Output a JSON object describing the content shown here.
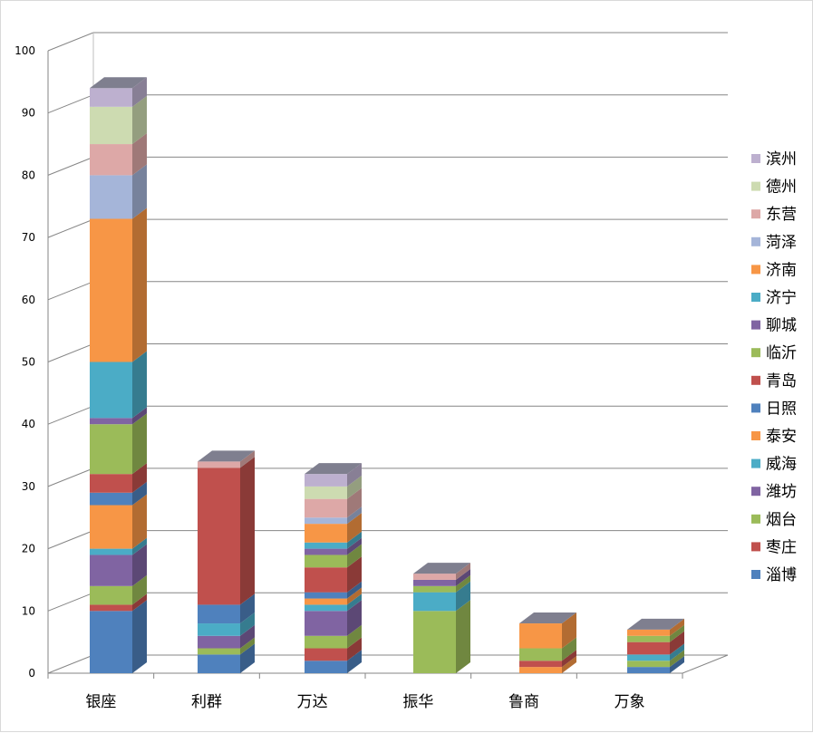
{
  "chart_data": {
    "type": "bar",
    "stacked": true,
    "three_d": true,
    "categories": [
      "银座",
      "利群",
      "万达",
      "振华",
      "鲁商",
      "万象"
    ],
    "ylim": [
      0,
      100
    ],
    "yticks": [
      0,
      10,
      20,
      30,
      40,
      50,
      60,
      70,
      80,
      90,
      100
    ],
    "grid": true,
    "legend_position": "right",
    "series": [
      {
        "name": "淄博",
        "color": "#4F81BD",
        "values": [
          10,
          3,
          2,
          0,
          0,
          1
        ]
      },
      {
        "name": "枣庄",
        "color": "#C0504D",
        "values": [
          1,
          0,
          2,
          0,
          0,
          0
        ]
      },
      {
        "name": "烟台",
        "color": "#9BBB59",
        "values": [
          3,
          1,
          2,
          10,
          0,
          1
        ]
      },
      {
        "name": "潍坊",
        "color": "#8064A2",
        "values": [
          5,
          2,
          4,
          0,
          0,
          0
        ]
      },
      {
        "name": "威海",
        "color": "#4BACC6",
        "values": [
          1,
          2,
          1,
          3,
          0,
          1
        ]
      },
      {
        "name": "泰安",
        "color": "#F79646",
        "values": [
          7,
          0,
          1,
          0,
          1,
          0
        ]
      },
      {
        "name": "日照",
        "color": "#4F81BD",
        "values": [
          2,
          3,
          1,
          0,
          0,
          0
        ]
      },
      {
        "name": "青岛",
        "color": "#C0504D",
        "values": [
          3,
          22,
          4,
          0,
          1,
          2
        ]
      },
      {
        "name": "临沂",
        "color": "#9BBB59",
        "values": [
          8,
          0,
          2,
          1,
          2,
          1
        ]
      },
      {
        "name": "聊城",
        "color": "#8064A2",
        "values": [
          1,
          0,
          1,
          1,
          0,
          0
        ]
      },
      {
        "name": "济宁",
        "color": "#4BACC6",
        "values": [
          9,
          0,
          1,
          0,
          0,
          0
        ]
      },
      {
        "name": "济南",
        "color": "#F79646",
        "values": [
          23,
          0,
          3,
          0,
          4,
          1
        ]
      },
      {
        "name": "菏泽",
        "color": "#A5B5D9",
        "values": [
          7,
          0,
          1,
          0,
          0,
          0
        ]
      },
      {
        "name": "东营",
        "color": "#DDA8A7",
        "values": [
          5,
          1,
          3,
          1,
          0,
          0
        ]
      },
      {
        "name": "德州",
        "color": "#CDDBB1",
        "values": [
          6,
          0,
          2,
          0,
          0,
          0
        ]
      },
      {
        "name": "滨州",
        "color": "#BDB0CF",
        "values": [
          3,
          0,
          2,
          0,
          0,
          0
        ]
      }
    ]
  }
}
